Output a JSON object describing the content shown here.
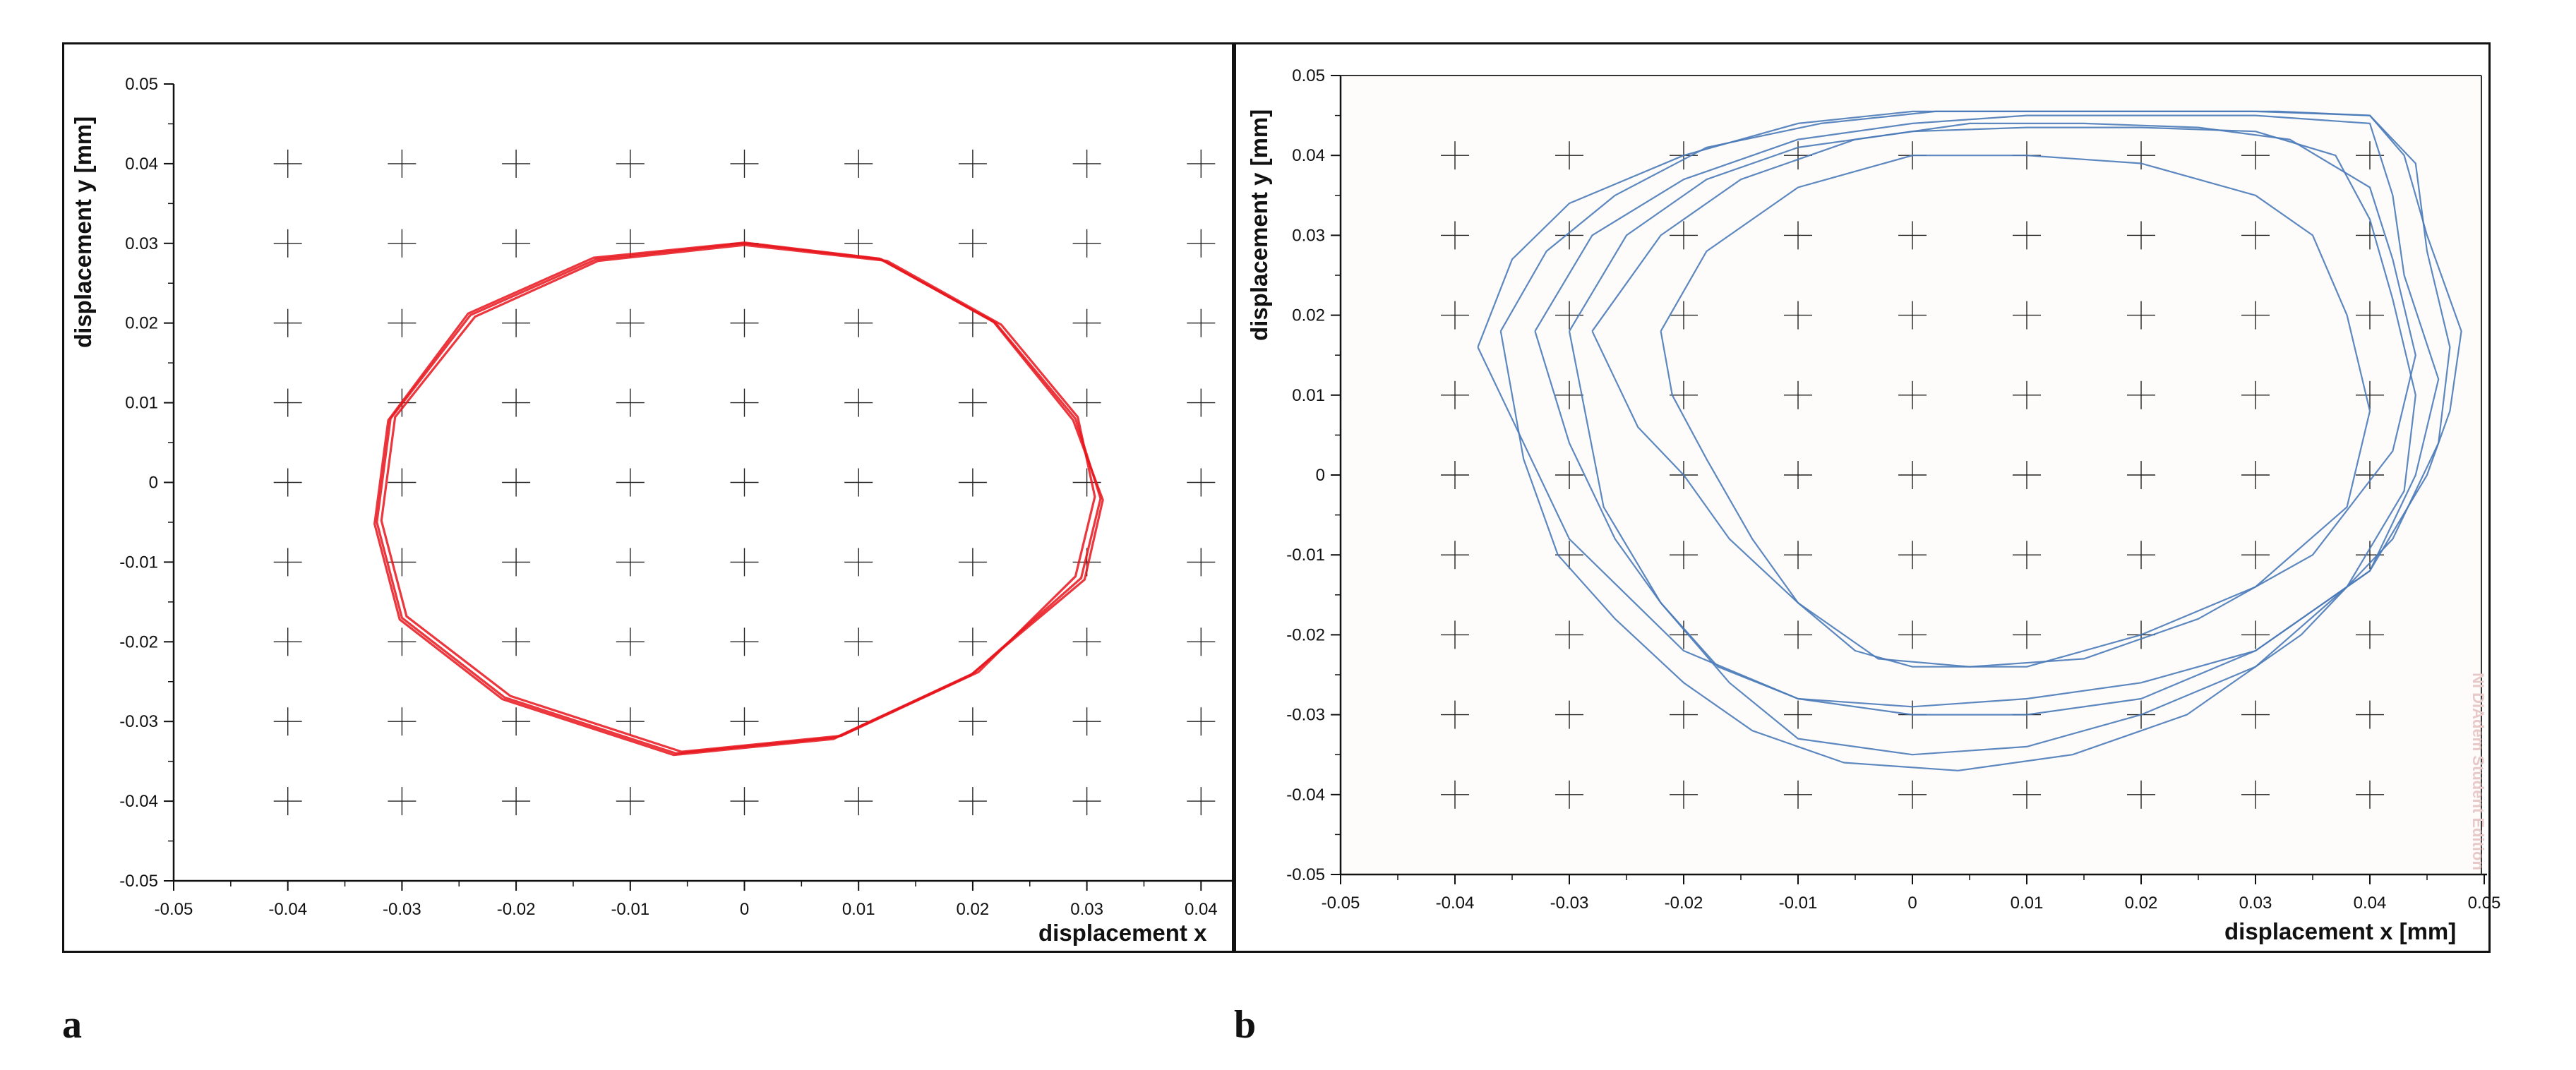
{
  "panel_labels": {
    "a": "a",
    "b": "b"
  },
  "watermark": "NI DIAdem Student Edition",
  "colors": {
    "a": "#e8141b",
    "b": "#4a7ab8",
    "grid": "#222222"
  },
  "chart_data": [
    {
      "type": "line",
      "panel": "a",
      "xlabel": "displacement x",
      "ylabel": "displacement y [mm]",
      "xlim": [
        -0.05,
        0.043
      ],
      "ylim": [
        -0.05,
        0.05
      ],
      "xticks": [
        "-0.05",
        "-0.04",
        "-0.03",
        "-0.02",
        "-0.01",
        "0",
        "0.01",
        "0.02",
        "0.03",
        "0.04"
      ],
      "yticks": [
        "0.05",
        "0.04",
        "0.03",
        "0.02",
        "0.01",
        "0",
        "-0.01",
        "-0.02",
        "-0.03",
        "-0.04",
        "-0.05"
      ],
      "grid": "crosses",
      "series": [
        {
          "x": [
            0.0,
            0.012,
            0.022,
            0.029,
            0.0312,
            0.0295,
            0.02,
            0.008,
            -0.006,
            -0.021,
            -0.03,
            -0.0322,
            -0.031,
            -0.024,
            -0.013,
            0.0
          ],
          "y": [
            0.03,
            0.028,
            0.02,
            0.008,
            -0.002,
            -0.012,
            -0.024,
            -0.032,
            -0.034,
            -0.027,
            -0.017,
            -0.005,
            0.008,
            0.021,
            0.028,
            0.03
          ]
        },
        {
          "x": [
            0.0,
            0.0125,
            0.0225,
            0.0292,
            0.0307,
            0.029,
            0.0205,
            0.0085,
            -0.0055,
            -0.0205,
            -0.0296,
            -0.0318,
            -0.0306,
            -0.0236,
            -0.0128,
            0.0
          ],
          "y": [
            0.0298,
            0.0278,
            0.0198,
            0.0082,
            -0.0018,
            -0.0118,
            -0.0238,
            -0.0318,
            -0.0338,
            -0.0268,
            -0.0168,
            -0.0048,
            0.0082,
            0.0208,
            0.0278,
            0.0298
          ]
        },
        {
          "x": [
            0.0,
            0.0118,
            0.0218,
            0.0288,
            0.0314,
            0.0298,
            0.0198,
            0.0078,
            -0.0062,
            -0.0212,
            -0.0302,
            -0.0324,
            -0.0312,
            -0.0242,
            -0.0132,
            0.0
          ],
          "y": [
            0.0301,
            0.0281,
            0.0202,
            0.0078,
            -0.0022,
            -0.0122,
            -0.0242,
            -0.0322,
            -0.0342,
            -0.0272,
            -0.0172,
            -0.0052,
            0.0078,
            0.0212,
            0.0282,
            0.0301
          ]
        }
      ]
    },
    {
      "type": "line",
      "panel": "b",
      "xlabel": "displacement x [mm]",
      "ylabel": "displacement y [mm]",
      "xlim": [
        -0.05,
        0.05
      ],
      "ylim": [
        -0.05,
        0.05
      ],
      "xticks": [
        "-0.05",
        "-0.04",
        "-0.03",
        "-0.02",
        "-0.01",
        "0",
        "0.01",
        "0.02",
        "0.03",
        "0.04",
        "0.05"
      ],
      "yticks": [
        "0.05",
        "0.04",
        "0.03",
        "0.02",
        "0.01",
        "0",
        "-0.01",
        "-0.02",
        "-0.03",
        "-0.04",
        "-0.05"
      ],
      "grid": "crosses",
      "series": [
        {
          "x": [
            -0.038,
            -0.035,
            -0.03,
            -0.02,
            -0.01,
            0.0,
            0.01,
            0.02,
            0.03,
            0.04,
            0.043,
            0.045,
            0.048,
            0.047,
            0.045,
            0.04,
            0.03,
            0.02,
            0.01,
            0.0,
            -0.01,
            -0.02,
            -0.025,
            -0.03,
            -0.034,
            -0.038
          ],
          "y": [
            0.016,
            0.027,
            0.034,
            0.04,
            0.044,
            0.0455,
            0.0455,
            0.0455,
            0.0455,
            0.045,
            0.04,
            0.03,
            0.018,
            0.008,
            0.0,
            -0.012,
            -0.022,
            -0.026,
            -0.028,
            -0.029,
            -0.028,
            -0.022,
            -0.015,
            -0.008,
            0.004,
            0.016
          ]
        },
        {
          "x": [
            -0.033,
            -0.028,
            -0.02,
            -0.01,
            0.0,
            0.01,
            0.02,
            0.03,
            0.04,
            0.042,
            0.043,
            0.046,
            0.044,
            0.04,
            0.03,
            0.02,
            0.01,
            0.0,
            -0.01,
            -0.017,
            -0.022,
            -0.026,
            -0.03,
            -0.033
          ],
          "y": [
            0.018,
            0.03,
            0.037,
            0.042,
            0.044,
            0.045,
            0.045,
            0.045,
            0.044,
            0.035,
            0.025,
            0.012,
            0.0,
            -0.012,
            -0.022,
            -0.028,
            -0.03,
            -0.03,
            -0.028,
            -0.024,
            -0.016,
            -0.008,
            0.004,
            0.018
          ]
        },
        {
          "x": [
            -0.028,
            -0.022,
            -0.015,
            -0.005,
            0.005,
            0.015,
            0.025,
            0.033,
            0.04,
            0.042,
            0.044,
            0.042,
            0.035,
            0.025,
            0.015,
            0.005,
            -0.003,
            -0.01,
            -0.016,
            -0.02,
            -0.024,
            -0.026,
            -0.028
          ],
          "y": [
            0.018,
            0.03,
            0.037,
            0.042,
            0.044,
            0.044,
            0.0435,
            0.042,
            0.036,
            0.027,
            0.015,
            0.003,
            -0.01,
            -0.018,
            -0.023,
            -0.024,
            -0.023,
            -0.016,
            -0.008,
            0.0,
            0.006,
            0.012,
            0.018
          ]
        },
        {
          "x": [
            -0.022,
            -0.018,
            -0.01,
            0.0,
            0.01,
            0.02,
            0.03,
            0.035,
            0.038,
            0.04,
            0.038,
            0.03,
            0.02,
            0.01,
            0.0,
            -0.005,
            -0.01,
            -0.014,
            -0.018,
            -0.021,
            -0.022
          ],
          "y": [
            0.018,
            0.028,
            0.036,
            0.04,
            0.04,
            0.039,
            0.035,
            0.03,
            0.02,
            0.008,
            -0.004,
            -0.014,
            -0.02,
            -0.024,
            -0.024,
            -0.022,
            -0.016,
            -0.008,
            0.002,
            0.01,
            0.018
          ]
        },
        {
          "x": [
            -0.036,
            -0.032,
            -0.026,
            -0.018,
            -0.008,
            0.002,
            0.012,
            0.022,
            0.032,
            0.04,
            0.044,
            0.045,
            0.047,
            0.046,
            0.042,
            0.034,
            0.024,
            0.014,
            0.004,
            -0.006,
            -0.014,
            -0.02,
            -0.026,
            -0.031,
            -0.034,
            -0.036
          ],
          "y": [
            0.018,
            0.028,
            0.035,
            0.041,
            0.044,
            0.0455,
            0.0455,
            0.0455,
            0.0455,
            0.045,
            0.039,
            0.028,
            0.016,
            0.004,
            -0.008,
            -0.02,
            -0.03,
            -0.035,
            -0.037,
            -0.036,
            -0.032,
            -0.026,
            -0.018,
            -0.01,
            0.002,
            0.018
          ]
        },
        {
          "x": [
            -0.03,
            -0.025,
            -0.018,
            -0.01,
            0.0,
            0.01,
            0.02,
            0.03,
            0.037,
            0.04,
            0.042,
            0.044,
            0.043,
            0.038,
            0.03,
            0.02,
            0.01,
            0.0,
            -0.01,
            -0.016,
            -0.022,
            -0.027,
            -0.03
          ],
          "y": [
            0.018,
            0.03,
            0.037,
            0.041,
            0.043,
            0.0435,
            0.0435,
            0.043,
            0.04,
            0.032,
            0.022,
            0.01,
            -0.002,
            -0.014,
            -0.024,
            -0.03,
            -0.034,
            -0.035,
            -0.033,
            -0.026,
            -0.016,
            -0.004,
            0.018
          ]
        }
      ]
    }
  ]
}
